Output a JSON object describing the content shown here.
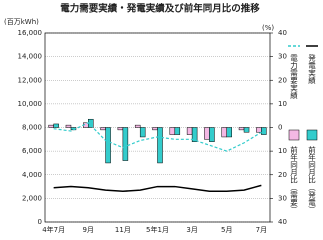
{
  "chart_data": {
    "type": "combo",
    "title": "電力需要実績・発電実績及び前年同月比の推移",
    "ylabel": "(百万kWh)",
    "y2label": "(%)",
    "categories": [
      "4年7月",
      null,
      "9月",
      null,
      "11月",
      null,
      "5年1月",
      null,
      "3月",
      null,
      "5月",
      null,
      "7月"
    ],
    "ylim": [
      0,
      16000
    ],
    "yticks": [
      0,
      {
        "value": 2000,
        "label": "2,000"
      },
      {
        "value": 4000,
        "label": "4,000"
      },
      {
        "value": 6000,
        "label": "6,000"
      },
      {
        "value": 8000,
        "label": "8,000"
      },
      {
        "value": 10000,
        "label": "10,000"
      },
      {
        "value": 12000,
        "label": "12,000"
      },
      {
        "value": 14000,
        "label": "14,000"
      },
      {
        "value": 16000,
        "label": "16,000"
      }
    ],
    "y2lim": [
      -40,
      40
    ],
    "y2ticks": [
      {
        "value": -40,
        "label": "40"
      },
      {
        "value": -30,
        "label": "30"
      },
      {
        "value": -20,
        "label": "20"
      },
      {
        "value": -10,
        "label": "10"
      },
      0,
      10,
      20,
      30,
      40
    ],
    "grid": true,
    "series": [
      {
        "name": "発電実績",
        "type": "line",
        "color": "#000000",
        "dash": false,
        "values": [
          2900,
          3000,
          2900,
          2700,
          2600,
          2700,
          3000,
          3000,
          2800,
          2600,
          2600,
          2700,
          3100
        ]
      },
      {
        "name": "電力需要実績",
        "type": "line",
        "color": "#33cccc",
        "dash": true,
        "values": [
          7900,
          7700,
          8400,
          6900,
          6300,
          6900,
          7200,
          7000,
          7000,
          6500,
          6000,
          6700,
          7600
        ]
      },
      {
        "name": "前年同月比（需要）",
        "type": "bar",
        "axis": "y2",
        "color": "#f4b8e4",
        "values": [
          1,
          1,
          2,
          -1,
          -1,
          1,
          -1,
          -3,
          -3,
          -5,
          -4,
          -1,
          -2
        ]
      },
      {
        "name": "前年同月比（発電）",
        "type": "bar",
        "axis": "y2",
        "color": "#33cccc",
        "values": [
          1.5,
          -1,
          3.5,
          -15,
          -14,
          -4,
          -15,
          -3,
          -6,
          -6,
          -4,
          -2,
          -3
        ]
      }
    ]
  }
}
